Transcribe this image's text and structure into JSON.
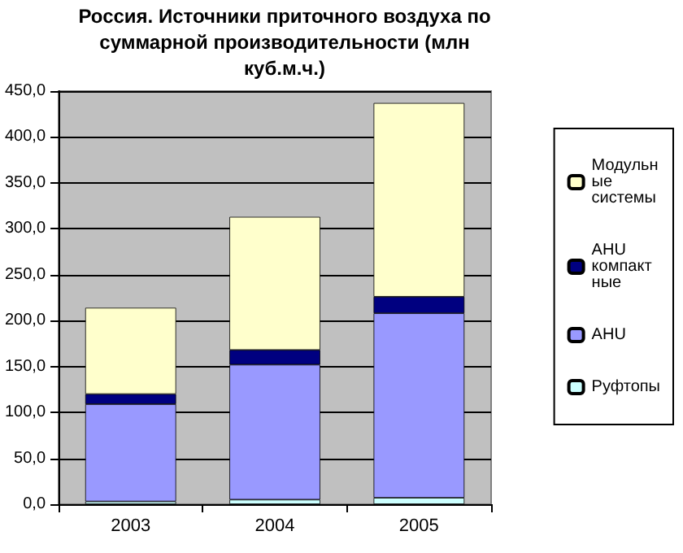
{
  "chart_data": {
    "type": "bar",
    "title": "Россия. Источники приточного воздуха по суммарной производительности (млн куб.м.ч.)",
    "categories": [
      "2003",
      "2004",
      "2005"
    ],
    "series": [
      {
        "name": "Руфтопы",
        "color": "#ccffff",
        "values": [
          3,
          5,
          7
        ]
      },
      {
        "name": "AHU",
        "color": "#9999ff",
        "values": [
          106,
          147,
          201
        ]
      },
      {
        "name": "AHU компактные",
        "color": "#000080",
        "values": [
          11,
          16,
          18
        ]
      },
      {
        "name": "Модульные системы",
        "color": "#ffffcc",
        "values": [
          94,
          145,
          211
        ]
      }
    ],
    "stacked": true,
    "ylim": [
      0,
      450
    ],
    "yticks": [
      {
        "value": 0,
        "label": "0,0"
      },
      {
        "value": 50,
        "label": "50,0"
      },
      {
        "value": 100,
        "label": "100,0"
      },
      {
        "value": 150,
        "label": "150,0"
      },
      {
        "value": 200,
        "label": "200,0"
      },
      {
        "value": 250,
        "label": "250,0"
      },
      {
        "value": 300,
        "label": "300,0"
      },
      {
        "value": 350,
        "label": "350,0"
      },
      {
        "value": 400,
        "label": "400,0"
      },
      {
        "value": 450,
        "label": "450,0"
      }
    ],
    "grid": "y",
    "legend": "right"
  }
}
